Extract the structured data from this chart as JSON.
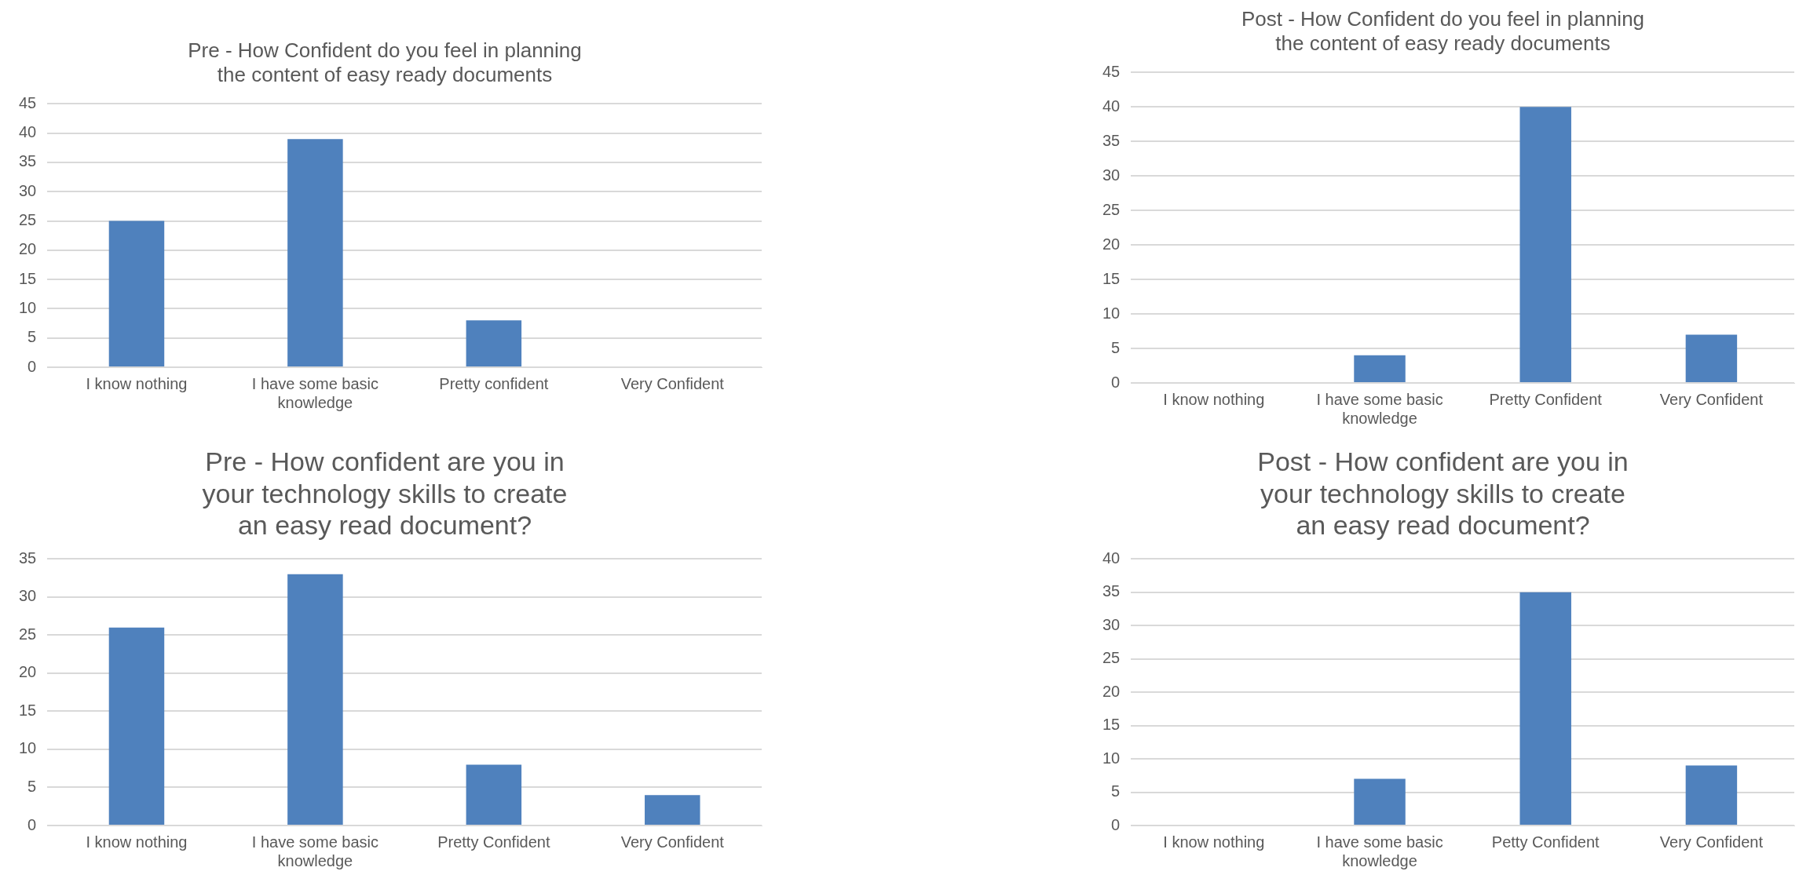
{
  "chart_data": [
    {
      "type": "bar",
      "title": "Pre - How Confident do you feel in planning the content of easy ready documents",
      "categories": [
        "I know nothing",
        "I have some basic knowledge",
        "Pretty confident",
        "Very Confident"
      ],
      "values": [
        25,
        39,
        8,
        0
      ],
      "color": "#4f81bd",
      "ylim": [
        0,
        45
      ],
      "yticks": [
        0,
        5,
        10,
        15,
        20,
        25,
        30,
        35,
        40,
        45
      ],
      "grid": "y"
    },
    {
      "type": "bar",
      "title": "Post - How Confident do you feel in planning the content of easy ready documents",
      "categories": [
        "I know nothing",
        "I have some basic knowledge",
        "Pretty Confident",
        "Very Confident"
      ],
      "values": [
        0,
        4,
        40,
        7
      ],
      "color": "#4f81bd",
      "ylim": [
        0,
        45
      ],
      "yticks": [
        0,
        5,
        10,
        15,
        20,
        25,
        30,
        35,
        40,
        45
      ],
      "grid": "y"
    },
    {
      "type": "bar",
      "title": "Pre - How confident are you in your technology skills to create an easy read document?",
      "categories": [
        "I know nothing",
        "I have some basic knowledge",
        "Pretty Confident",
        "Very Confident"
      ],
      "values": [
        26,
        33,
        8,
        4
      ],
      "color": "#4f81bd",
      "ylim": [
        0,
        35
      ],
      "yticks": [
        0,
        5,
        10,
        15,
        20,
        25,
        30,
        35
      ],
      "grid": "y"
    },
    {
      "type": "bar",
      "title": "Post - How confident are you in your technology skills to create an easy read document?",
      "categories": [
        "I know nothing",
        "I have some basic knowledge",
        "Petty Confident",
        "Very Confident"
      ],
      "values": [
        0,
        7,
        35,
        9
      ],
      "color": "#4f81bd",
      "ylim": [
        0,
        40
      ],
      "yticks": [
        0,
        5,
        10,
        15,
        20,
        25,
        30,
        35,
        40
      ],
      "grid": "y"
    }
  ]
}
